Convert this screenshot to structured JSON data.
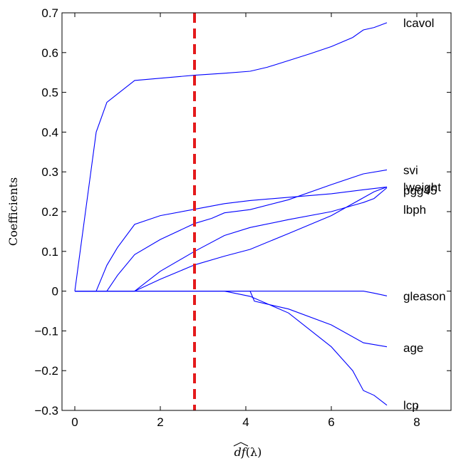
{
  "chart_data": {
    "type": "line",
    "title": "",
    "xlabel": "df(λ)",
    "ylabel": "Coefficients",
    "xlim": [
      -0.3,
      8.8
    ],
    "ylim": [
      -0.3,
      0.7
    ],
    "xticks": [
      0,
      2,
      4,
      6,
      8
    ],
    "xtick_labels": [
      "0",
      "2",
      "4",
      "6",
      "8"
    ],
    "yticks": [
      -0.3,
      -0.2,
      -0.1,
      0,
      0.1,
      0.2,
      0.3,
      0.4,
      0.5,
      0.6,
      0.7
    ],
    "ytick_labels": [
      "−0.3",
      "−0.2",
      "−0.1",
      "0",
      "0.1",
      "0.2",
      "0.3",
      "0.4",
      "0.5",
      "0.6",
      "0.7"
    ],
    "grid": false,
    "line_color": "#0000ff",
    "marker_line": {
      "x": 2.8,
      "color": "#e41a1c",
      "style": "dashed"
    },
    "series": [
      {
        "name": "lcavol",
        "x": [
          0,
          0.5,
          0.75,
          1.4,
          2.8,
          3.5,
          4.1,
          4.5,
          5.0,
          5.5,
          6.0,
          6.5,
          6.75,
          7.0,
          7.3
        ],
        "y": [
          0,
          0.4,
          0.475,
          0.53,
          0.543,
          0.548,
          0.553,
          0.563,
          0.58,
          0.597,
          0.615,
          0.638,
          0.657,
          0.663,
          0.675
        ]
      },
      {
        "name": "svi",
        "x": [
          0,
          0.75,
          1.0,
          1.4,
          2.0,
          2.8,
          3.5,
          4.1,
          5.0,
          6.0,
          6.75,
          7.0,
          7.3
        ],
        "y": [
          0,
          0,
          0,
          0,
          0.05,
          0.1,
          0.14,
          0.16,
          0.18,
          0.2,
          0.223,
          0.233,
          0.26
        ]
      },
      {
        "name": "lweight",
        "x": [
          0,
          0.5,
          0.75,
          1.0,
          1.4,
          2.0,
          2.8,
          3.5,
          4.1,
          5.0,
          6.0,
          6.75,
          7.3
        ],
        "y": [
          0,
          0,
          0.065,
          0.11,
          0.168,
          0.19,
          0.206,
          0.22,
          0.228,
          0.236,
          0.245,
          0.255,
          0.262
        ]
      },
      {
        "name": "pgg45",
        "x": [
          0,
          1.4,
          2.0,
          2.8,
          3.5,
          4.1,
          5.0,
          6.0,
          6.75,
          7.0,
          7.3
        ],
        "y": [
          0,
          0,
          0.03,
          0.066,
          0.088,
          0.105,
          0.145,
          0.19,
          0.235,
          0.25,
          0.262
        ]
      },
      {
        "name": "lbph",
        "x": [
          0,
          0.75,
          1.0,
          1.4,
          2.0,
          2.8,
          3.2,
          3.5,
          4.1,
          5.0,
          6.0,
          6.75,
          7.3
        ],
        "y": [
          0,
          0,
          0.04,
          0.092,
          0.13,
          0.17,
          0.183,
          0.197,
          0.205,
          0.23,
          0.268,
          0.295,
          0.305
        ]
      },
      {
        "name": "gleason",
        "x": [
          0,
          6.75,
          7.0,
          7.3
        ],
        "y": [
          0,
          0,
          -0.005,
          -0.012
        ]
      },
      {
        "name": "age",
        "x": [
          0,
          4.1,
          4.2,
          5.0,
          6.0,
          6.75,
          7.3
        ],
        "y": [
          0,
          0,
          -0.025,
          -0.045,
          -0.085,
          -0.13,
          -0.14
        ]
      },
      {
        "name": "lcp",
        "x": [
          0,
          3.5,
          4.1,
          5.0,
          6.0,
          6.5,
          6.75,
          7.0,
          7.3
        ],
        "y": [
          0,
          0,
          -0.013,
          -0.055,
          -0.14,
          -0.2,
          -0.25,
          -0.262,
          -0.287
        ]
      }
    ],
    "label_positions": [
      {
        "name": "lcavol",
        "y": 0.675
      },
      {
        "name": "svi",
        "y": 0.305
      },
      {
        "name": "lweight",
        "y": 0.262
      },
      {
        "name": "pgg45",
        "y": 0.254
      },
      {
        "name": "lbph",
        "y": 0.205
      },
      {
        "name": "gleason",
        "y": -0.012
      },
      {
        "name": "age",
        "y": -0.142
      },
      {
        "name": "lcp",
        "y": -0.287
      }
    ]
  }
}
